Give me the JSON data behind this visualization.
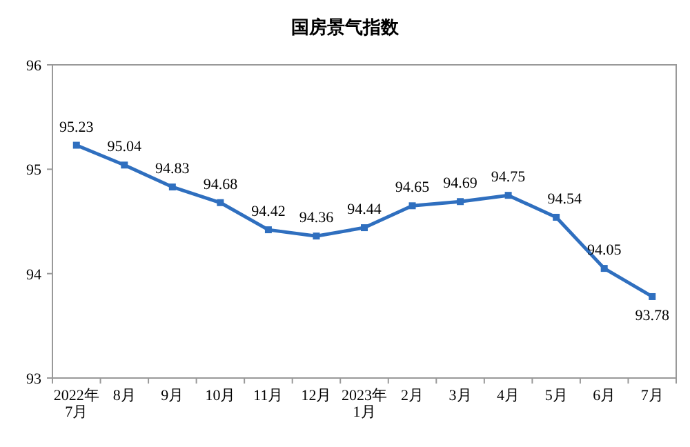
{
  "chart_data": {
    "type": "line",
    "title": "国房景气指数",
    "categories": [
      "2022年\n7月",
      "8月",
      "9月",
      "10月",
      "11月",
      "12月",
      "2023年\n1月",
      "2月",
      "3月",
      "4月",
      "5月",
      "6月",
      "7月"
    ],
    "series": [
      {
        "color": "#2f6fbf",
        "values": [
          95.23,
          95.04,
          94.83,
          94.68,
          94.42,
          94.36,
          94.44,
          94.65,
          94.69,
          94.75,
          94.54,
          94.05,
          93.78
        ]
      }
    ],
    "ylim": [
      93,
      96
    ],
    "yticks": [
      93,
      94,
      95,
      96
    ],
    "marker": "square",
    "line_style": "solid",
    "data_labels": true,
    "grid": false
  }
}
